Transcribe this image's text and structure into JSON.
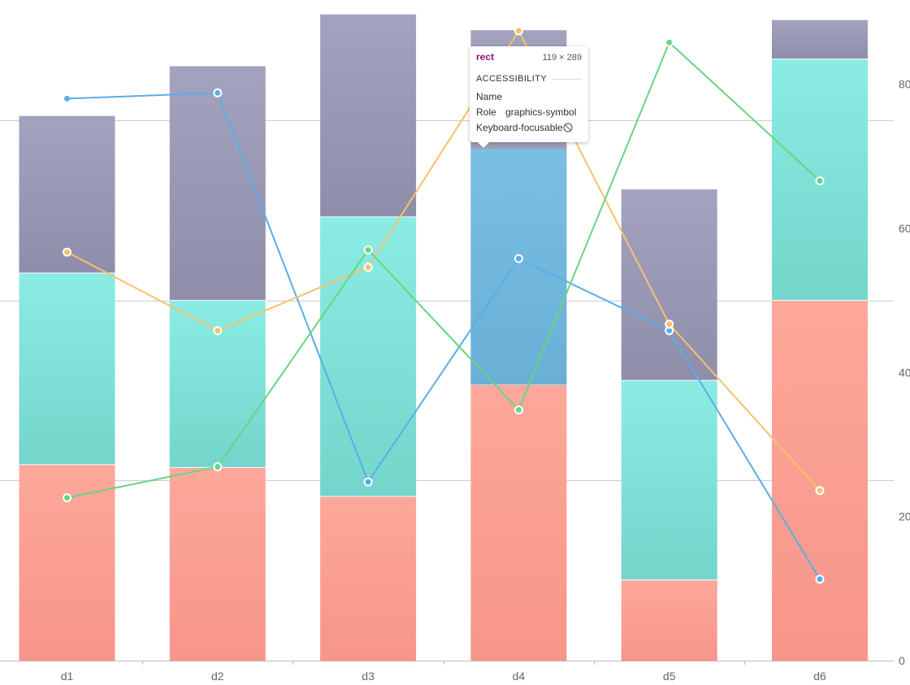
{
  "chart_data": {
    "type": "bar",
    "stacked": true,
    "categories": [
      "d1",
      "d2",
      "d3",
      "d4",
      "d5",
      "d6"
    ],
    "bar_series": [
      {
        "values": [
          27.2,
          26.8,
          22.8,
          38.3,
          11.2,
          50.0
        ],
        "color": "#f9938a"
      },
      {
        "values": [
          26.6,
          23.2,
          38.8,
          0,
          27.7,
          33.5
        ],
        "color": "#7cdfd4"
      },
      {
        "values": [
          21.8,
          32.5,
          28.1,
          49.2,
          26.5,
          5.4
        ],
        "color": "#9898b2"
      }
    ],
    "highlighted_bar": {
      "category": "d4",
      "color": "#70b4dc",
      "from": 38.3,
      "to": 71.0
    },
    "line_series": [
      {
        "values": [
          78.0,
          78.8,
          24.8,
          55.8,
          45.8,
          11.3
        ],
        "color": "#5aade8"
      },
      {
        "values": [
          56.7,
          45.8,
          54.6,
          87.4,
          46.7,
          23.6
        ],
        "color": "#f5c26b"
      },
      {
        "values": [
          22.6,
          26.9,
          57.0,
          34.8,
          85.8,
          66.6
        ],
        "color": "#67d583"
      }
    ],
    "y_axis": {
      "position": "right",
      "min": 0,
      "max": 90,
      "ticks": [
        0,
        20,
        40,
        60,
        80
      ],
      "visible_tick_labels": [
        "0",
        "20",
        "40",
        "60",
        "80"
      ]
    },
    "gridlines": [
      0,
      25,
      50,
      75
    ],
    "grid": true,
    "legend": "none"
  },
  "tooltip": {
    "tag": "rect",
    "size": "119 × 289",
    "section": "ACCESSIBILITY",
    "rows": [
      {
        "key": "Name",
        "value": ""
      },
      {
        "key": "Role",
        "value": "graphics-symbol"
      },
      {
        "key": "Keyboard-focusable",
        "value": ""
      }
    ]
  }
}
